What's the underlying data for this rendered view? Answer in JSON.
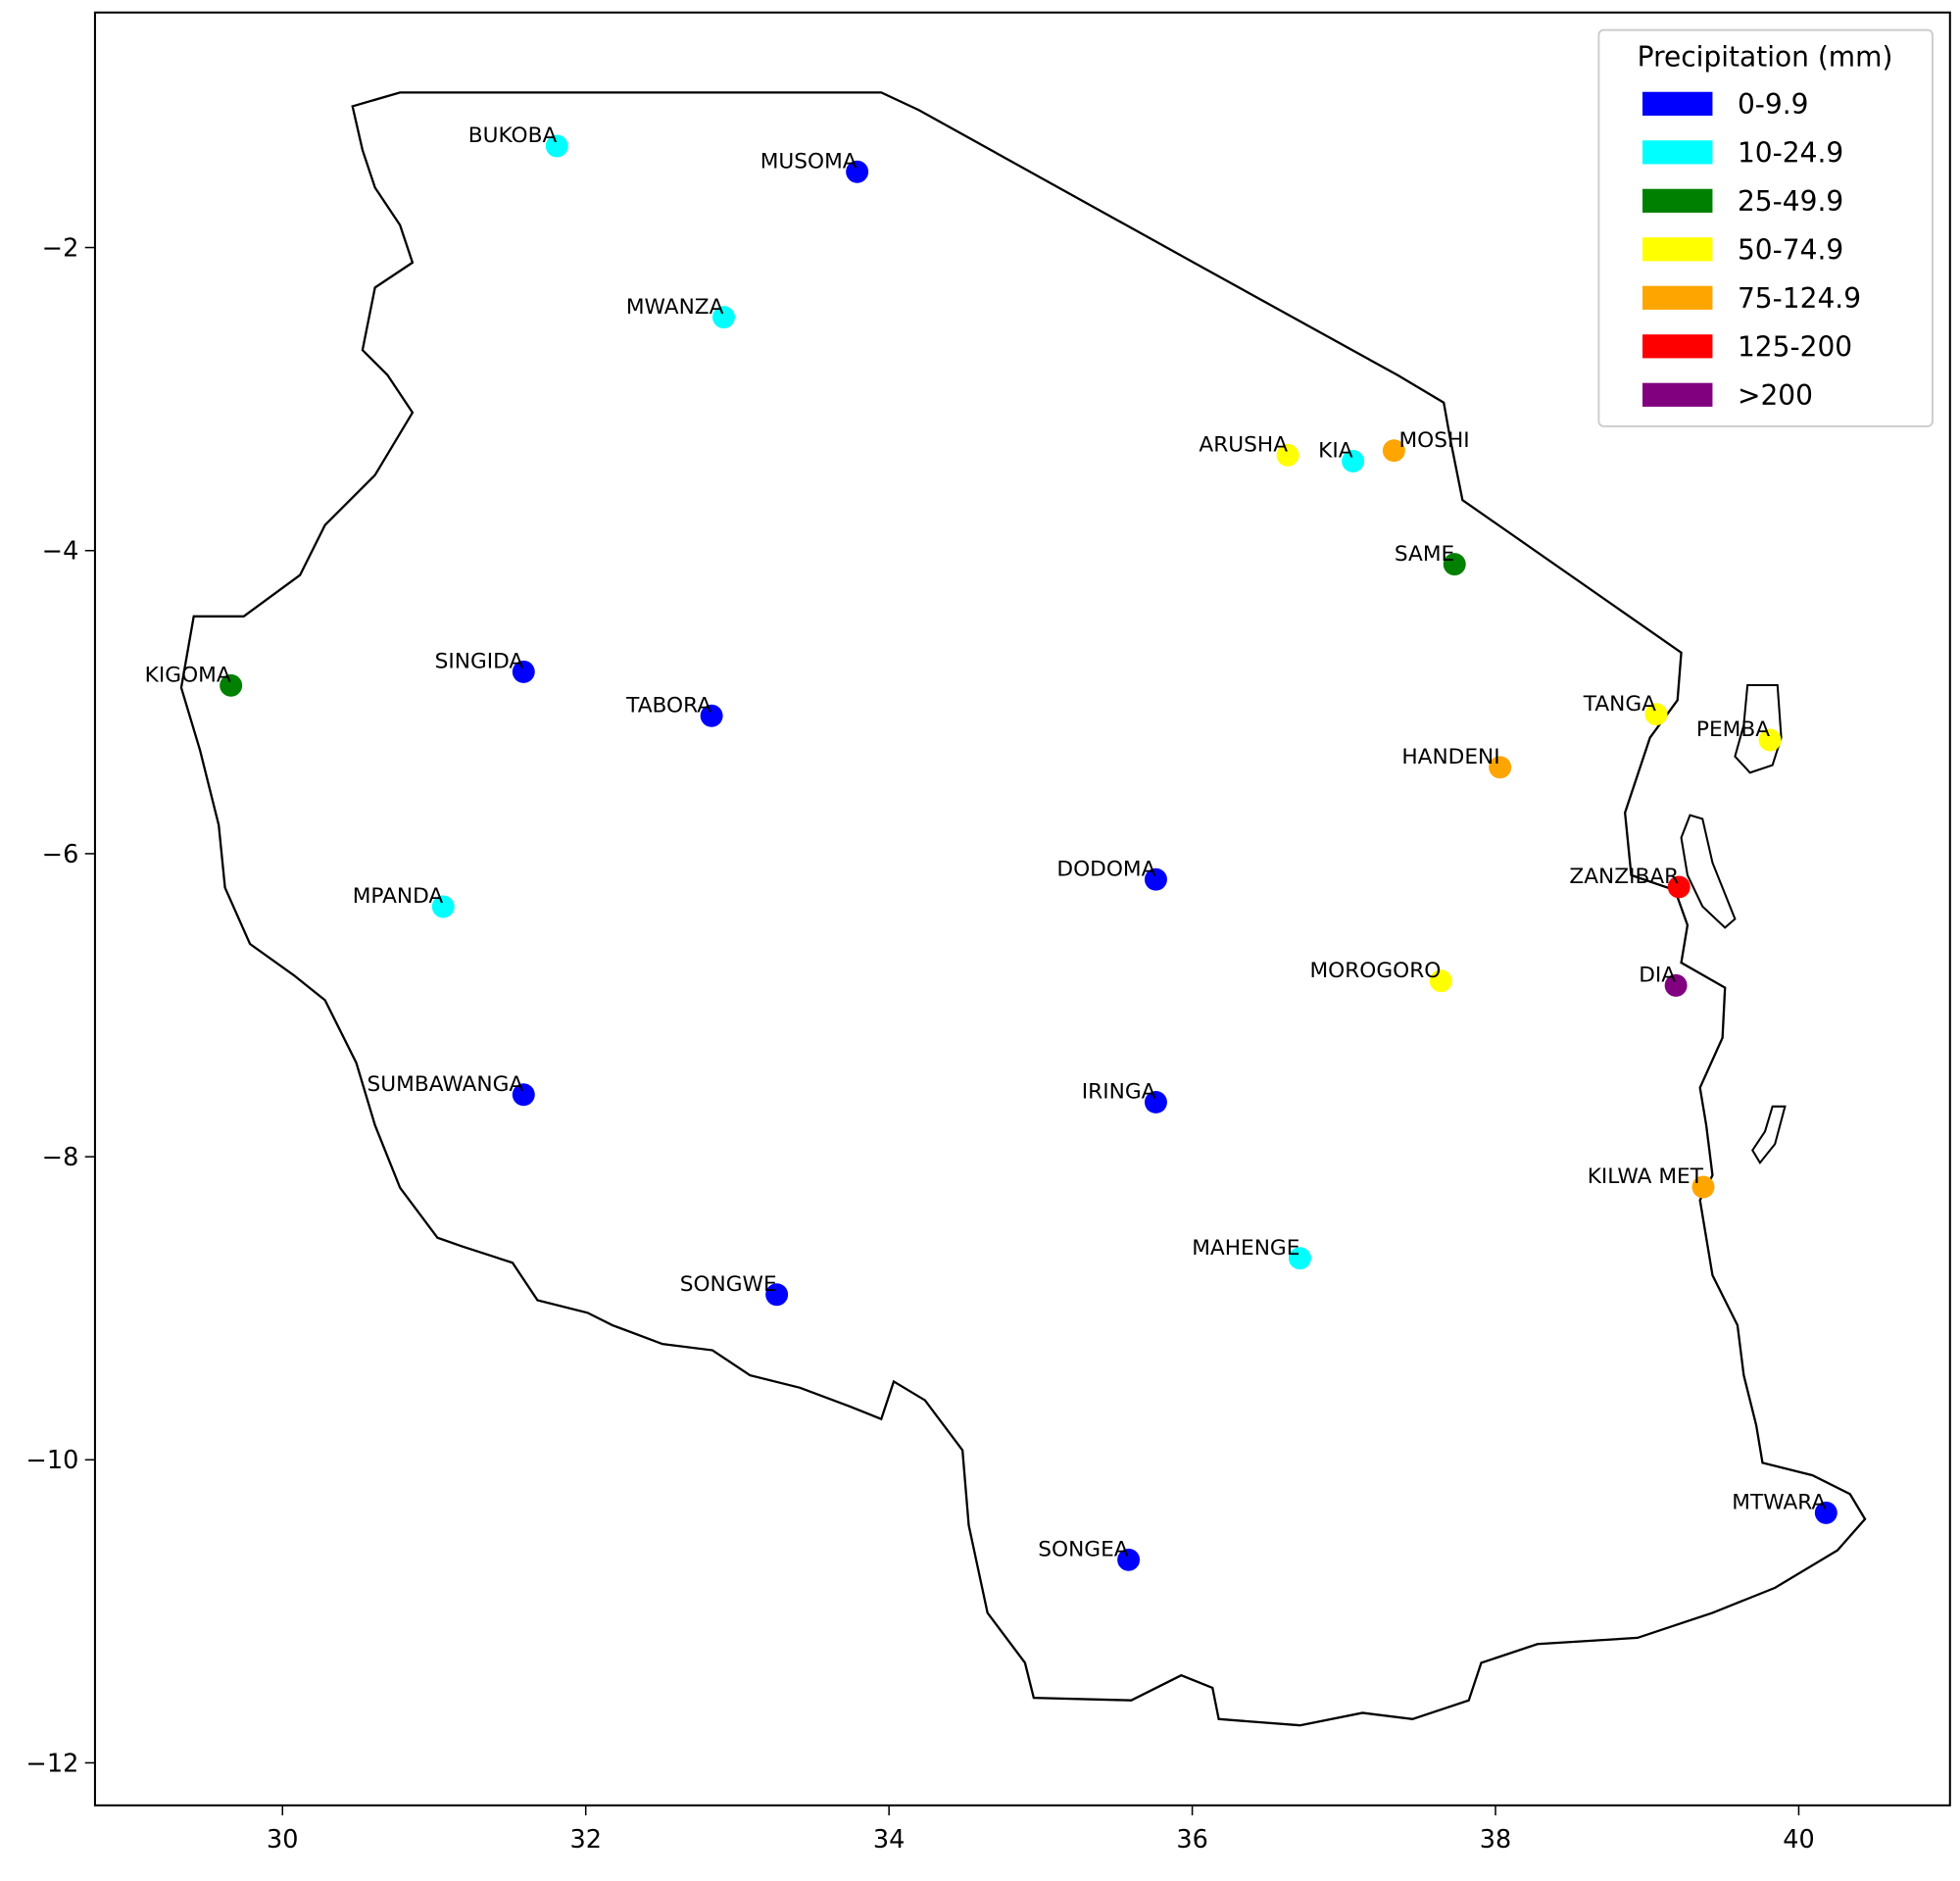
{
  "chart_data": {
    "type": "scatter",
    "title": "",
    "xlabel": "",
    "ylabel": "",
    "xlim": [
      28.77,
      41.0
    ],
    "ylim": [
      -12.28,
      -0.45
    ],
    "x_ticks": [
      "30",
      "32",
      "34",
      "36",
      "38",
      "40"
    ],
    "x_tick_values": [
      30,
      32,
      34,
      36,
      38,
      40
    ],
    "y_ticks": [
      "−2",
      "−4",
      "−6",
      "−8",
      "−10",
      "−12"
    ],
    "y_tick_values": [
      -2,
      -4,
      -6,
      -8,
      -10,
      -12
    ],
    "legend": {
      "title": "Precipitation (mm)",
      "placement": "top-right",
      "entries": [
        {
          "label": "0-9.9",
          "color": "#0000ff"
        },
        {
          "label": "10-24.9",
          "color": "#00ffff"
        },
        {
          "label": "25-49.9",
          "color": "#008000"
        },
        {
          "label": "50-74.9",
          "color": "#ffff00"
        },
        {
          "label": "75-124.9",
          "color": "#ffa500"
        },
        {
          "label": "125-200",
          "color": "#ff0000"
        },
        {
          "label": ">200",
          "color": "#800080"
        }
      ]
    },
    "stations": [
      {
        "name": "BUKOBA",
        "lon": 31.81,
        "lat": -1.33,
        "class": 1
      },
      {
        "name": "MUSOMA",
        "lon": 33.79,
        "lat": -1.5,
        "class": 0
      },
      {
        "name": "MWANZA",
        "lon": 32.91,
        "lat": -2.46,
        "class": 1
      },
      {
        "name": "ARUSHA",
        "lon": 36.63,
        "lat": -3.37,
        "class": 3
      },
      {
        "name": "KIA",
        "lon": 37.06,
        "lat": -3.41,
        "class": 1
      },
      {
        "name": "MOSHI",
        "lon": 37.33,
        "lat": -3.34,
        "class": 4
      },
      {
        "name": "SAME",
        "lon": 37.73,
        "lat": -4.09,
        "class": 2
      },
      {
        "name": "KIGOMA",
        "lon": 29.66,
        "lat": -4.89,
        "class": 2
      },
      {
        "name": "SINGIDA",
        "lon": 31.59,
        "lat": -4.8,
        "class": 0
      },
      {
        "name": "TABORA",
        "lon": 32.83,
        "lat": -5.09,
        "class": 0
      },
      {
        "name": "TANGA",
        "lon": 39.06,
        "lat": -5.08,
        "class": 3
      },
      {
        "name": "PEMBA",
        "lon": 39.81,
        "lat": -5.25,
        "class": 3
      },
      {
        "name": "HANDENI",
        "lon": 38.03,
        "lat": -5.43,
        "class": 4
      },
      {
        "name": "DODOMA",
        "lon": 35.76,
        "lat": -6.17,
        "class": 0
      },
      {
        "name": "MPANDA",
        "lon": 31.06,
        "lat": -6.35,
        "class": 1
      },
      {
        "name": "ZANZIBAR",
        "lon": 39.21,
        "lat": -6.22,
        "class": 5
      },
      {
        "name": "MOROGORO",
        "lon": 37.64,
        "lat": -6.84,
        "class": 3
      },
      {
        "name": "DIA",
        "lon": 39.19,
        "lat": -6.87,
        "class": 6
      },
      {
        "name": "SUMBAWANGA",
        "lon": 31.59,
        "lat": -7.59,
        "class": 0
      },
      {
        "name": "IRINGA",
        "lon": 35.76,
        "lat": -7.64,
        "class": 0
      },
      {
        "name": "KILWA MET",
        "lon": 39.37,
        "lat": -8.2,
        "class": 4
      },
      {
        "name": "MAHENGE",
        "lon": 36.71,
        "lat": -8.67,
        "class": 1
      },
      {
        "name": "SONGWE",
        "lon": 33.26,
        "lat": -8.91,
        "class": 0
      },
      {
        "name": "MTWARA",
        "lon": 40.18,
        "lat": -10.35,
        "class": 0
      },
      {
        "name": "SONGEA",
        "lon": 35.58,
        "lat": -10.66,
        "class": 0
      }
    ]
  }
}
